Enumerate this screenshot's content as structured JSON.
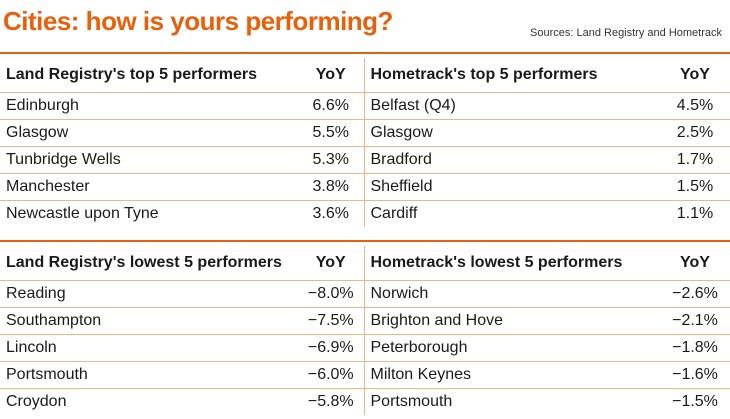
{
  "title": "Cities: how is yours performing?",
  "sources": "Sources: Land Registry and Hometrack",
  "top": {
    "lr_header": "Land Registry's top 5 performers",
    "lr_yoy": "YoY",
    "ht_header": "Hometrack's top 5 performers",
    "ht_yoy": "YoY",
    "rows": [
      {
        "lr_city": "Edinburgh",
        "lr_val": "6.6%",
        "ht_city": "Belfast (Q4)",
        "ht_val": "4.5%"
      },
      {
        "lr_city": "Glasgow",
        "lr_val": "5.5%",
        "ht_city": "Glasgow",
        "ht_val": "2.5%"
      },
      {
        "lr_city": "Tunbridge Wells",
        "lr_val": "5.3%",
        "ht_city": "Bradford",
        "ht_val": "1.7%"
      },
      {
        "lr_city": "Manchester",
        "lr_val": "3.8%",
        "ht_city": "Sheffield",
        "ht_val": "1.5%"
      },
      {
        "lr_city": "Newcastle upon Tyne",
        "lr_val": "3.6%",
        "ht_city": "Cardiff",
        "ht_val": "1.1%"
      }
    ]
  },
  "bottom": {
    "lr_header": "Land Registry's lowest 5 performers",
    "lr_yoy": "YoY",
    "ht_header": "Hometrack's lowest 5 performers",
    "ht_yoy": "YoY",
    "rows": [
      {
        "lr_city": "Reading",
        "lr_val": "−8.0%",
        "ht_city": "Norwich",
        "ht_val": "−2.6%"
      },
      {
        "lr_city": "Southampton",
        "lr_val": "−7.5%",
        "ht_city": "Brighton and Hove",
        "ht_val": "−2.1%"
      },
      {
        "lr_city": "Lincoln",
        "lr_val": "−6.9%",
        "ht_city": "Peterborough",
        "ht_val": "−1.8%"
      },
      {
        "lr_city": "Portsmouth",
        "lr_val": "−6.0%",
        "ht_city": "Milton Keynes",
        "ht_val": "−1.6%"
      },
      {
        "lr_city": "Croydon",
        "lr_val": "−5.8%",
        "ht_city": "Portsmouth",
        "ht_val": "−1.5%"
      }
    ]
  }
}
